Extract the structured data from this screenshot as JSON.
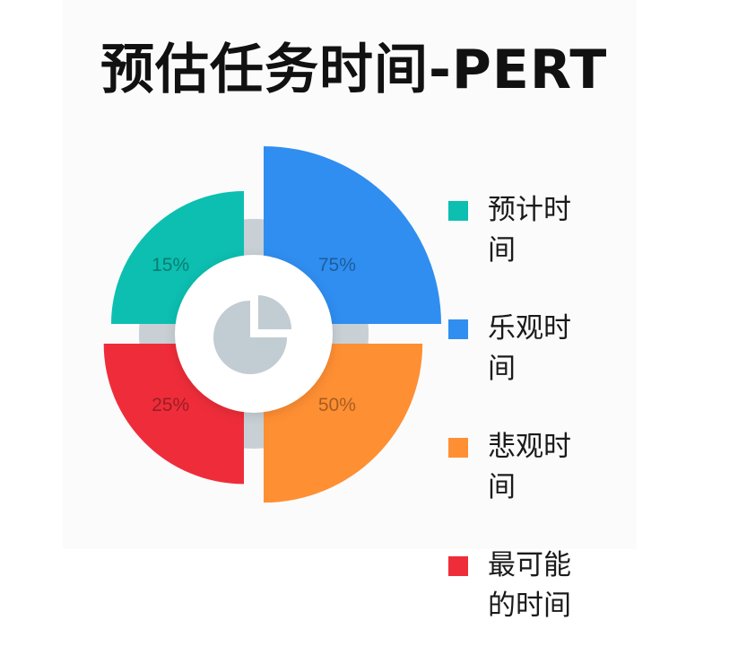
{
  "title": "预估任务时间-PERT",
  "chart_data": {
    "type": "pie",
    "title": "预估任务时间-PERT",
    "series": [
      {
        "name": "预计时间",
        "value": 15,
        "label": "15%",
        "color": "#0cbfb1"
      },
      {
        "name": "乐观时间",
        "value": 75,
        "label": "75%",
        "color": "#2f8ef0"
      },
      {
        "name": "悲观时间",
        "value": 50,
        "label": "50%",
        "color": "#ff8f33"
      },
      {
        "name": "最可能的时间",
        "value": 25,
        "label": "25%",
        "color": "#ef2d3a"
      }
    ],
    "legend": "right"
  },
  "icons": {
    "center": "pie-chart-icon"
  },
  "colors": {
    "ring": "#c8d0d6",
    "center_circle": "#ffffff",
    "icon": "#c2ccd3"
  }
}
